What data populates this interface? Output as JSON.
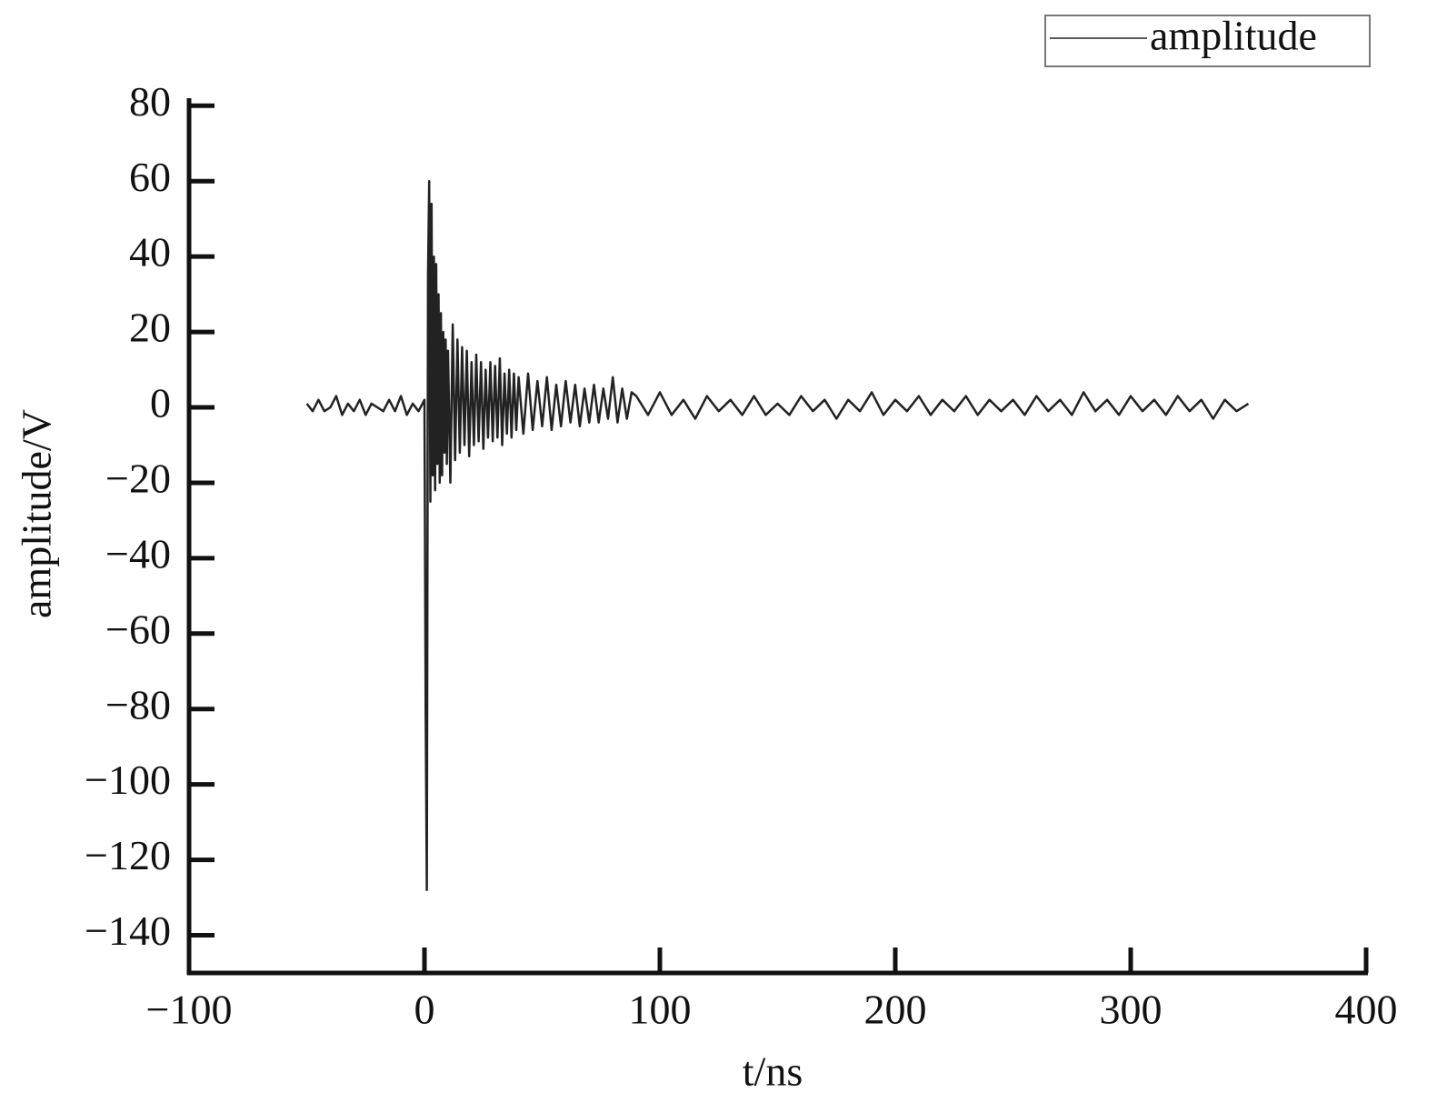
{
  "chart_data": {
    "type": "line",
    "xlabel": "t/ns",
    "ylabel": "amplitude/V",
    "xlim": [
      -100,
      400
    ],
    "xticks": [
      {
        "value": -100,
        "label": "−100"
      },
      0,
      100,
      200,
      300,
      400
    ],
    "ylim": [
      -150,
      82
    ],
    "yticks": [
      80,
      60,
      40,
      20,
      0,
      {
        "value": -20,
        "label": "−20"
      },
      {
        "value": -40,
        "label": "−40"
      },
      {
        "value": -60,
        "label": "−60"
      },
      {
        "value": -80,
        "label": "−80"
      },
      {
        "value": -100,
        "label": "−100"
      },
      {
        "value": -120,
        "label": "−120"
      },
      {
        "value": -140,
        "label": "−140"
      }
    ],
    "legend": "top-right",
    "x": [
      -50,
      -47.5,
      -45,
      -42.5,
      -40,
      -37.5,
      -35,
      -32.5,
      -30,
      -27.5,
      -25,
      -22.5,
      -20,
      -17.5,
      -15,
      -12.5,
      -10,
      -7.5,
      -5,
      -2.5,
      0,
      0.5,
      1,
      1.5,
      2,
      2.5,
      3,
      3.5,
      4,
      4.5,
      5,
      5.5,
      6,
      6.5,
      7,
      7.5,
      8,
      8.5,
      9,
      9.5,
      10,
      11,
      12,
      13,
      14,
      15,
      16,
      17,
      18,
      19,
      20,
      21,
      22,
      23,
      24,
      25,
      26,
      27,
      28,
      29,
      30,
      31,
      32,
      33,
      34,
      35,
      36,
      37,
      38,
      39,
      40,
      42,
      44,
      46,
      48,
      50,
      52,
      54,
      56,
      58,
      60,
      62,
      64,
      66,
      68,
      70,
      72,
      74,
      76,
      78,
      80,
      82,
      84,
      86,
      88,
      90,
      95,
      100,
      105,
      110,
      115,
      120,
      125,
      130,
      135,
      140,
      145,
      150,
      155,
      160,
      165,
      170,
      175,
      180,
      185,
      190,
      195,
      200,
      205,
      210,
      215,
      220,
      225,
      230,
      235,
      240,
      245,
      250,
      255,
      260,
      265,
      270,
      275,
      280,
      285,
      290,
      295,
      300,
      305,
      310,
      315,
      320,
      325,
      330,
      335,
      340,
      345,
      350
    ],
    "series": [
      {
        "name": "amplitude",
        "color": "#222222",
        "values": [
          1,
          -1,
          2,
          -1,
          0,
          3,
          -2,
          1,
          -1,
          2,
          -2,
          1,
          0,
          -1,
          2,
          -1,
          3,
          -2,
          1,
          -1,
          2,
          -80,
          -128,
          35,
          60,
          -25,
          54,
          -18,
          40,
          -22,
          38,
          -15,
          30,
          -20,
          25,
          -18,
          20,
          -12,
          18,
          -15,
          15,
          -20,
          22,
          -14,
          18,
          -12,
          16,
          -10,
          15,
          -13,
          12,
          -10,
          14,
          -9,
          12,
          -11,
          10,
          -8,
          12,
          -9,
          11,
          -8,
          13,
          -10,
          9,
          -7,
          10,
          -8,
          9,
          -6,
          8,
          -7,
          9,
          -6,
          7,
          -5,
          8,
          -6,
          6,
          -5,
          7,
          -4,
          6,
          -5,
          5,
          -4,
          6,
          -4,
          5,
          -3,
          8,
          -4,
          5,
          -3,
          4,
          3,
          -2,
          4,
          -2,
          2,
          -3,
          3,
          -1,
          2,
          -2,
          3,
          -2,
          1,
          -2,
          3,
          -1,
          2,
          -3,
          2,
          -1,
          4,
          -2,
          2,
          -1,
          3,
          -2,
          2,
          -1,
          3,
          -2,
          2,
          -1,
          2,
          -2,
          3,
          -1,
          2,
          -2,
          4,
          -1,
          2,
          -2,
          3,
          -1,
          2,
          -2,
          3,
          -1,
          2,
          -3,
          2,
          -1,
          1
        ]
      }
    ]
  }
}
